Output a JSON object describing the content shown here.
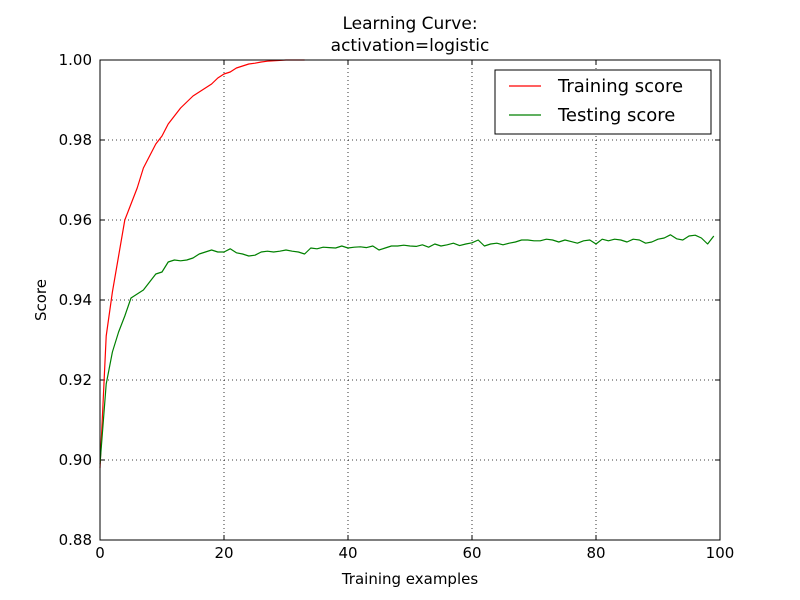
{
  "chart_data": {
    "type": "line",
    "title": "Learning Curve:",
    "subtitle": "activation=logistic",
    "xlabel": "Training examples",
    "ylabel": "Score",
    "xlim": [
      0,
      100
    ],
    "ylim": [
      0.88,
      1.0
    ],
    "xticks": [
      0,
      20,
      40,
      60,
      80,
      100
    ],
    "yticks": [
      0.88,
      0.9,
      0.92,
      0.94,
      0.96,
      0.98,
      1.0
    ],
    "xtick_labels": [
      "0",
      "20",
      "40",
      "60",
      "80",
      "100"
    ],
    "ytick_labels": [
      "0.88",
      "0.90",
      "0.92",
      "0.94",
      "0.96",
      "0.98",
      "1.00"
    ],
    "grid": true,
    "legend_position": "top-right",
    "series": [
      {
        "name": "Training score",
        "color": "#ff0000",
        "x": [
          0,
          1,
          2,
          3,
          4,
          5,
          6,
          7,
          8,
          9,
          10,
          11,
          12,
          13,
          14,
          15,
          16,
          17,
          18,
          19,
          20,
          21,
          22,
          23,
          24,
          25,
          26,
          27,
          28,
          29,
          30,
          31,
          32,
          33
        ],
        "y": [
          0.898,
          0.931,
          0.942,
          0.951,
          0.96,
          0.964,
          0.968,
          0.973,
          0.976,
          0.979,
          0.981,
          0.984,
          0.986,
          0.988,
          0.9895,
          0.991,
          0.992,
          0.993,
          0.994,
          0.9955,
          0.9965,
          0.997,
          0.998,
          0.9985,
          0.999,
          0.9992,
          0.9995,
          0.9997,
          0.9998,
          0.9999,
          1.0,
          1.0,
          1.0,
          1.0
        ]
      },
      {
        "name": "Testing score",
        "color": "#008000",
        "x": [
          0,
          1,
          2,
          3,
          4,
          5,
          6,
          7,
          8,
          9,
          10,
          11,
          12,
          13,
          14,
          15,
          16,
          17,
          18,
          19,
          20,
          21,
          22,
          23,
          24,
          25,
          26,
          27,
          28,
          29,
          30,
          31,
          32,
          33,
          34,
          35,
          36,
          37,
          38,
          39,
          40,
          41,
          42,
          43,
          44,
          45,
          46,
          47,
          48,
          49,
          50,
          51,
          52,
          53,
          54,
          55,
          56,
          57,
          58,
          59,
          60,
          61,
          62,
          63,
          64,
          65,
          66,
          67,
          68,
          69,
          70,
          71,
          72,
          73,
          74,
          75,
          76,
          77,
          78,
          79,
          80,
          81,
          82,
          83,
          84,
          85,
          86,
          87,
          88,
          89,
          90,
          91,
          92,
          93,
          94,
          95,
          96,
          97,
          98,
          99
        ],
        "y": [
          0.899,
          0.919,
          0.927,
          0.932,
          0.936,
          0.9405,
          0.9415,
          0.9425,
          0.9445,
          0.9465,
          0.947,
          0.9495,
          0.95,
          0.9498,
          0.95,
          0.9505,
          0.9515,
          0.952,
          0.9525,
          0.952,
          0.952,
          0.9528,
          0.9518,
          0.9515,
          0.951,
          0.9512,
          0.952,
          0.9522,
          0.952,
          0.9522,
          0.9525,
          0.9522,
          0.952,
          0.9515,
          0.953,
          0.9528,
          0.9532,
          0.9531,
          0.953,
          0.9535,
          0.953,
          0.9532,
          0.9533,
          0.9531,
          0.9535,
          0.9525,
          0.953,
          0.9535,
          0.9535,
          0.9537,
          0.9535,
          0.9534,
          0.9538,
          0.9532,
          0.954,
          0.9535,
          0.9538,
          0.9542,
          0.9536,
          0.954,
          0.9543,
          0.955,
          0.9535,
          0.954,
          0.9542,
          0.9538,
          0.9542,
          0.9545,
          0.955,
          0.955,
          0.9548,
          0.9548,
          0.9552,
          0.955,
          0.9545,
          0.955,
          0.9546,
          0.9542,
          0.9548,
          0.955,
          0.954,
          0.9552,
          0.9548,
          0.9552,
          0.955,
          0.9545,
          0.9552,
          0.955,
          0.9542,
          0.9545,
          0.9552,
          0.9555,
          0.9563,
          0.9553,
          0.955,
          0.956,
          0.9562,
          0.9555,
          0.954,
          0.956
        ]
      }
    ]
  }
}
